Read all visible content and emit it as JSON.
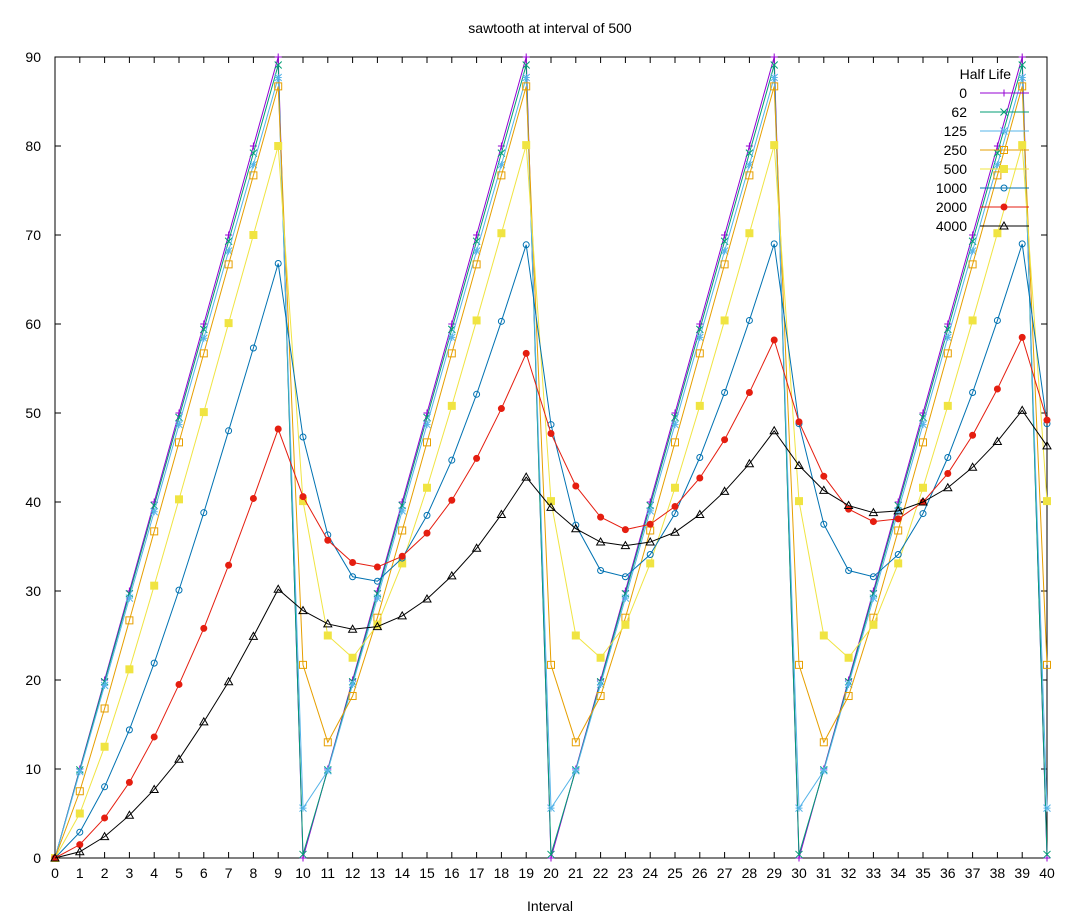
{
  "chart_data": {
    "type": "line",
    "title": "sawtooth at interval of 500",
    "xlabel": "Interval",
    "ylabel": "",
    "xlim": [
      0,
      40
    ],
    "ylim": [
      0,
      90
    ],
    "x_ticks": [
      0,
      1,
      2,
      3,
      4,
      5,
      6,
      7,
      8,
      9,
      10,
      11,
      12,
      13,
      14,
      15,
      16,
      17,
      18,
      19,
      20,
      21,
      22,
      23,
      24,
      25,
      26,
      27,
      28,
      29,
      30,
      31,
      32,
      33,
      34,
      35,
      36,
      37,
      38,
      39,
      40
    ],
    "y_ticks": [
      0,
      10,
      20,
      30,
      40,
      50,
      60,
      70,
      80,
      90
    ],
    "grid": false,
    "legend": {
      "title": "Half Life",
      "position": "top-right"
    },
    "x": [
      0,
      1,
      2,
      3,
      4,
      5,
      6,
      7,
      8,
      9,
      10,
      11,
      12,
      13,
      14,
      15,
      16,
      17,
      18,
      19,
      20,
      21,
      22,
      23,
      24,
      25,
      26,
      27,
      28,
      29,
      30,
      31,
      32,
      33,
      34,
      35,
      36,
      37,
      38,
      39,
      40
    ],
    "series": [
      {
        "name": "0",
        "color": "#9400d3",
        "marker": "plus",
        "values": [
          0,
          10,
          20,
          30,
          40,
          50,
          60,
          70,
          80,
          90,
          0,
          10,
          20,
          30,
          40,
          50,
          60,
          70,
          80,
          90,
          0,
          10,
          20,
          30,
          40,
          50,
          60,
          70,
          80,
          90,
          0,
          10,
          20,
          30,
          40,
          50,
          60,
          70,
          80,
          90,
          0
        ]
      },
      {
        "name": "62",
        "color": "#009e73",
        "marker": "x",
        "values": [
          0,
          9.9,
          19.8,
          29.7,
          39.6,
          49.5,
          59.4,
          69.3,
          79.2,
          89.1,
          0.4,
          9.9,
          19.8,
          29.7,
          39.6,
          49.5,
          59.4,
          69.3,
          79.2,
          89.1,
          0.4,
          9.9,
          19.8,
          29.7,
          39.6,
          49.5,
          59.4,
          69.3,
          79.2,
          89.1,
          0.4,
          9.9,
          19.8,
          29.7,
          39.6,
          49.5,
          59.4,
          69.3,
          79.2,
          89.1,
          0.4
        ]
      },
      {
        "name": "125",
        "color": "#56b4e9",
        "marker": "star",
        "values": [
          0,
          9.7,
          19.4,
          29.2,
          38.9,
          48.7,
          58.4,
          68.2,
          77.9,
          87.7,
          5.6,
          9.8,
          19.5,
          29.2,
          39.0,
          48.7,
          58.5,
          68.2,
          77.9,
          87.7,
          5.6,
          9.8,
          19.5,
          29.2,
          39.0,
          48.7,
          58.5,
          68.2,
          77.9,
          87.7,
          5.6,
          9.8,
          19.5,
          29.2,
          39.0,
          48.7,
          58.5,
          68.2,
          77.9,
          87.7,
          5.6
        ]
      },
      {
        "name": "250",
        "color": "#e69f00",
        "marker": "open-square",
        "values": [
          0,
          7.5,
          16.8,
          26.7,
          36.7,
          46.7,
          56.7,
          66.7,
          76.7,
          86.7,
          21.7,
          13.0,
          18.2,
          27.0,
          36.8,
          46.7,
          56.7,
          66.7,
          76.7,
          86.7,
          21.7,
          13.0,
          18.2,
          27.0,
          36.8,
          46.7,
          56.7,
          66.7,
          76.7,
          86.7,
          21.7,
          13.0,
          18.2,
          27.0,
          36.8,
          46.7,
          56.7,
          66.7,
          76.7,
          86.7,
          21.7
        ]
      },
      {
        "name": "500",
        "color": "#f0e442",
        "marker": "filled-square",
        "values": [
          0,
          5.0,
          12.5,
          21.2,
          30.6,
          40.3,
          50.1,
          60.1,
          70.0,
          80.0,
          40.1,
          25.0,
          22.5,
          26.2,
          33.1,
          41.6,
          50.8,
          60.4,
          70.2,
          80.1,
          40.1,
          25.0,
          22.5,
          26.2,
          33.1,
          41.6,
          50.8,
          60.4,
          70.2,
          80.1,
          40.1,
          25.0,
          22.5,
          26.2,
          33.1,
          41.6,
          50.8,
          60.4,
          70.2,
          80.1,
          40.1
        ]
      },
      {
        "name": "1000",
        "color": "#0072b2",
        "marker": "open-circle",
        "values": [
          0,
          2.9,
          8.0,
          14.4,
          21.9,
          30.1,
          38.8,
          48.0,
          57.3,
          66.8,
          47.3,
          36.3,
          31.6,
          31.1,
          33.7,
          38.5,
          44.7,
          52.1,
          60.3,
          68.9,
          48.7,
          37.4,
          32.3,
          31.6,
          34.1,
          38.7,
          45.0,
          52.3,
          60.4,
          69.0,
          48.8,
          37.5,
          32.3,
          31.6,
          34.1,
          38.7,
          45.0,
          52.3,
          60.4,
          69.0,
          48.8
        ]
      },
      {
        "name": "2000",
        "color": "#e51e10",
        "marker": "filled-circle",
        "values": [
          0,
          1.5,
          4.5,
          8.5,
          13.6,
          19.5,
          25.8,
          32.9,
          40.4,
          48.2,
          40.6,
          35.7,
          33.2,
          32.7,
          33.9,
          36.5,
          40.2,
          44.9,
          50.5,
          56.7,
          47.7,
          41.8,
          38.3,
          36.9,
          37.5,
          39.5,
          42.7,
          47.0,
          52.3,
          58.2,
          49.0,
          42.9,
          39.2,
          37.8,
          38.1,
          40.0,
          43.2,
          47.5,
          52.7,
          58.5,
          49.2
        ]
      },
      {
        "name": "4000",
        "color": "#000000",
        "marker": "open-triangle",
        "values": [
          0,
          0.7,
          2.4,
          4.8,
          7.7,
          11.1,
          15.3,
          19.8,
          24.9,
          30.2,
          27.8,
          26.3,
          25.7,
          26.0,
          27.2,
          29.1,
          31.7,
          34.8,
          38.6,
          42.8,
          39.4,
          37.0,
          35.5,
          35.1,
          35.5,
          36.6,
          38.6,
          41.2,
          44.3,
          48.0,
          44.1,
          41.3,
          39.6,
          38.8,
          39.0,
          40.0,
          41.6,
          43.9,
          46.8,
          50.3,
          46.3
        ]
      }
    ]
  }
}
